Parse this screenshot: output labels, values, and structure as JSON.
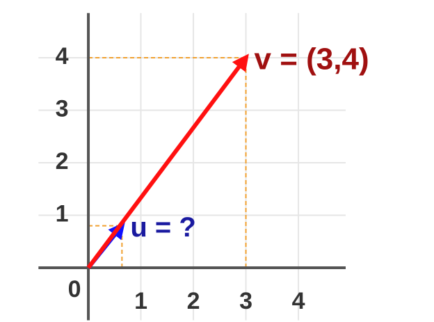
{
  "chart_data": {
    "type": "vector",
    "xlim": [
      -0.95,
      4.9
    ],
    "ylim": [
      -1,
      4.85
    ],
    "xticks": [
      1,
      2,
      3,
      4
    ],
    "yticks": [
      1,
      2,
      3,
      4
    ],
    "origin_tick": 0,
    "grid": true,
    "guides": true,
    "series": [
      {
        "label": "u = ?",
        "color": "#1a1aa0",
        "arrow_color": "#1010ff",
        "x": [
          0,
          0.64
        ],
        "y": [
          0,
          0.8
        ]
      },
      {
        "label": "v = (3,4)",
        "color": "#a01010",
        "arrow_color": "#ff1010",
        "x": [
          0,
          3
        ],
        "y": [
          0,
          4
        ]
      }
    ]
  }
}
